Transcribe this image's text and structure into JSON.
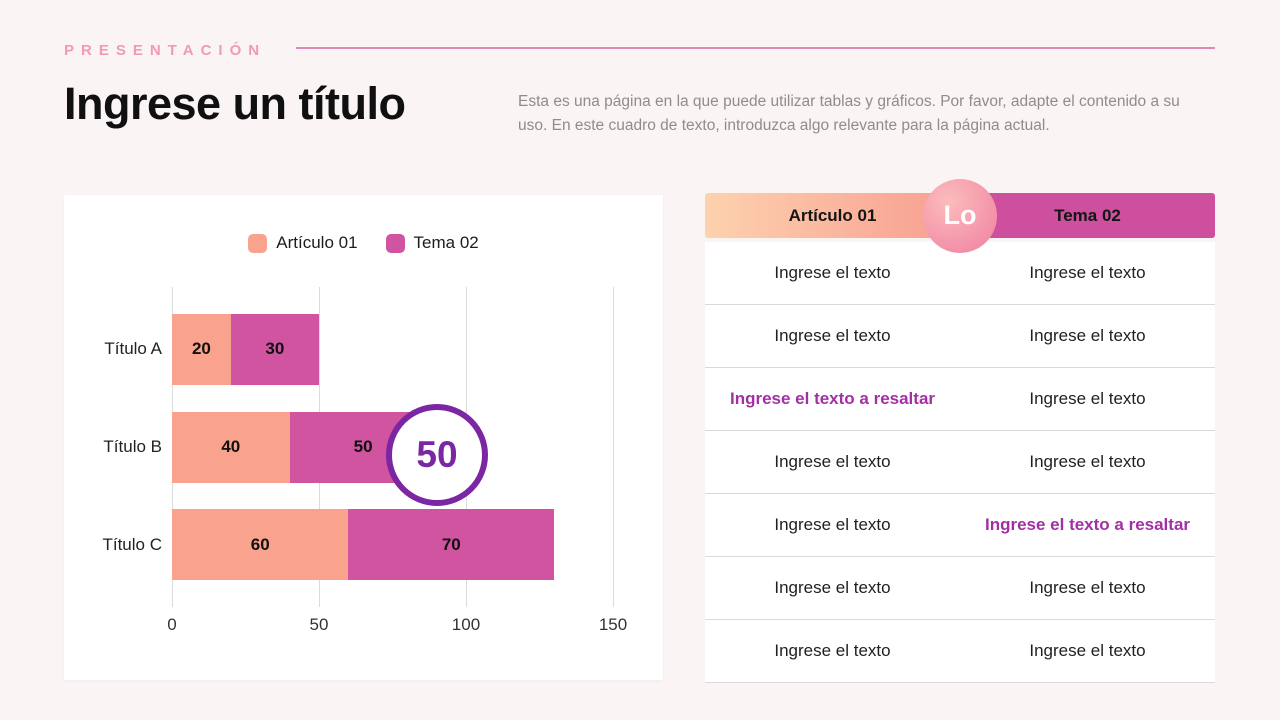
{
  "header": {
    "eyebrow": "PRESENTACIÓN",
    "title": "Ingrese un título",
    "description": "Esta es una página en la que puede utilizar tablas y gráficos. Por favor, adapte el contenido a su uso. En este cuadro de texto, introduzca algo relevante para la página actual."
  },
  "chart_data": {
    "type": "bar",
    "orientation": "horizontal",
    "stacked": true,
    "categories": [
      "Título A",
      "Título B",
      "Título C"
    ],
    "series": [
      {
        "name": "Artículo 01",
        "color": "#f9a28e",
        "values": [
          20,
          40,
          60
        ]
      },
      {
        "name": "Tema 02",
        "color": "#d0549f",
        "values": [
          30,
          50,
          70
        ]
      }
    ],
    "xlim": [
      0,
      150
    ],
    "xticks": [
      0,
      50,
      100,
      150
    ],
    "grid": true,
    "legend_position": "top",
    "callout": {
      "label": "50",
      "category": "Título B"
    }
  },
  "table": {
    "badge": "Lo",
    "columns": [
      {
        "label": "Artículo 01"
      },
      {
        "label": "Tema 02"
      }
    ],
    "rows": [
      {
        "left": "Ingrese el texto",
        "right": "Ingrese el texto",
        "left_highlight": false,
        "right_highlight": false
      },
      {
        "left": "Ingrese el texto",
        "right": "Ingrese el texto",
        "left_highlight": false,
        "right_highlight": false
      },
      {
        "left": "Ingrese el texto a resaltar",
        "right": "Ingrese el texto",
        "left_highlight": true,
        "right_highlight": false
      },
      {
        "left": "Ingrese el texto",
        "right": "Ingrese el texto",
        "left_highlight": false,
        "right_highlight": false
      },
      {
        "left": "Ingrese el texto",
        "right": "Ingrese el texto a resaltar",
        "left_highlight": false,
        "right_highlight": true
      },
      {
        "left": "Ingrese el texto",
        "right": "Ingrese el texto",
        "left_highlight": false,
        "right_highlight": false
      },
      {
        "left": "Ingrese el texto",
        "right": "Ingrese el texto",
        "left_highlight": false,
        "right_highlight": false
      }
    ]
  },
  "palette": {
    "background": "#faf4f5",
    "salmon": "#f9a28e",
    "magenta": "#d0549f",
    "header_peach_start": "#fdd2ae",
    "header_peach_end": "#f89d90",
    "header_magenta": "#cd4f9d",
    "purple_accent": "#7b27a3",
    "highlight_text": "#a32fa5",
    "eyebrow_pink": "#f09ab8",
    "divider_pink": "#dc8ab7"
  }
}
